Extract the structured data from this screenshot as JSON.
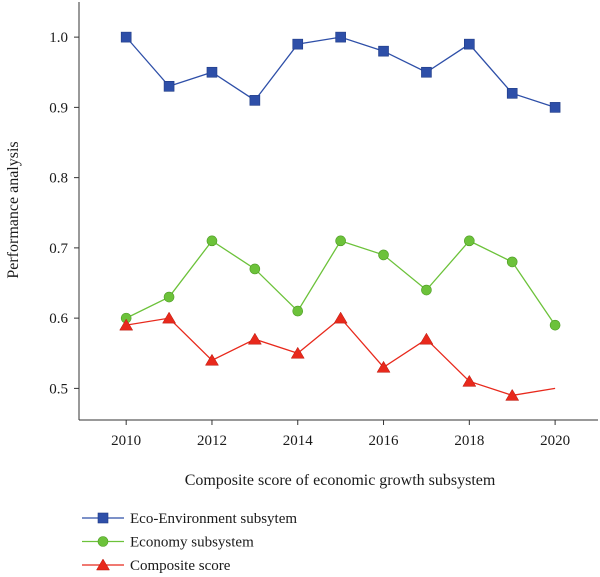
{
  "chart_data": {
    "type": "line",
    "xlabel": "Composite score of economic growth subsystem",
    "ylabel": "Performance analysis",
    "xlim": [
      2008.9,
      2021.0
    ],
    "ylim": [
      0.455,
      1.05
    ],
    "xticks": [
      2010,
      2012,
      2014,
      2016,
      2018,
      2020
    ],
    "yticks": [
      0.5,
      0.6,
      0.7,
      0.8,
      0.9,
      1.0
    ],
    "ytick_labels": [
      "0.5",
      "0.6",
      "0.7",
      "0.8",
      "0.9",
      "1.0"
    ],
    "legend_position": "bottom-left",
    "x": [
      2010,
      2011,
      2012,
      2013,
      2014,
      2015,
      2016,
      2017,
      2018,
      2019,
      2020
    ],
    "series": [
      {
        "name": "Eco-Environment subsytem",
        "marker": "square",
        "color": "#2e4fa8",
        "values": [
          1.0,
          0.93,
          0.95,
          0.91,
          0.99,
          1.0,
          0.98,
          0.95,
          0.99,
          0.92,
          0.9
        ]
      },
      {
        "name": "Economy subsystem",
        "marker": "circle",
        "color": "#6cc23a",
        "values": [
          0.6,
          0.63,
          0.71,
          0.67,
          0.61,
          0.71,
          0.69,
          0.64,
          0.71,
          0.68,
          0.59
        ]
      },
      {
        "name": "Composite score",
        "marker": "triangle",
        "color": "#e8291c",
        "last_marker": false,
        "values": [
          0.59,
          0.6,
          0.54,
          0.57,
          0.55,
          0.6,
          0.53,
          0.57,
          0.51,
          0.49,
          0.5
        ]
      }
    ]
  }
}
